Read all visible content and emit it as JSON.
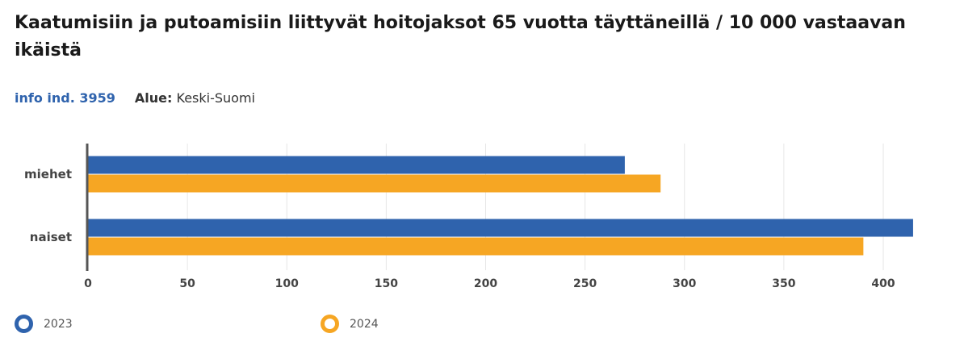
{
  "header": {
    "title": "Kaatumisiin ja putoamisiin liittyvät hoitojaksot 65 vuotta täyttäneillä / 10 000 vastaavan ikäistä",
    "indicator": "info ind. 3959",
    "area_key": "Alue:",
    "area_value": "Keski-Suomi"
  },
  "colors": {
    "series_2023": "#2f63ad",
    "series_2024": "#f6a623"
  },
  "chart_data": {
    "type": "bar",
    "orientation": "horizontal",
    "title": "Kaatumisiin ja putoamisiin liittyvät hoitojaksot 65 vuotta täyttäneillä / 10 000 vastaavan ikäistä",
    "xlabel": "",
    "ylabel": "",
    "categories": [
      "miehet",
      "naiset"
    ],
    "series": [
      {
        "name": "2023",
        "values": [
          270,
          415
        ]
      },
      {
        "name": "2024",
        "values": [
          288,
          390
        ]
      }
    ],
    "xlim": [
      0,
      420
    ],
    "xticks": [
      "0",
      "50",
      "100",
      "150",
      "200",
      "250",
      "300",
      "350",
      "400"
    ],
    "grid": true,
    "legend_position": "bottom"
  }
}
